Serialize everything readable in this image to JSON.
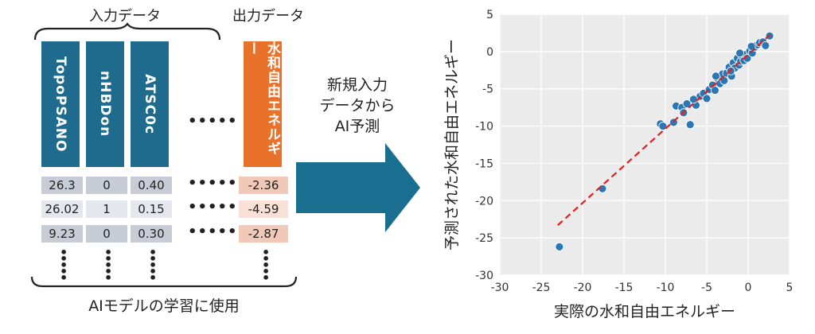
{
  "input_header": "入力データ",
  "output_header": "出力データ",
  "input_columns": [
    "TopoPSANO",
    "nHBDon",
    "ATSC0c"
  ],
  "output_column": "水和自由エネルギー",
  "ellipsis_h": "•••••",
  "rows": [
    {
      "cells": [
        "26.3",
        "0",
        "0.40"
      ],
      "out": "-2.36"
    },
    {
      "cells": [
        "26.02",
        "1",
        "0.15"
      ],
      "out": "-4.59"
    },
    {
      "cells": [
        "9.23",
        "0",
        "0.30"
      ],
      "out": "-2.87"
    }
  ],
  "bottom_label": "AIモデルの学習に使用",
  "arrow_text": [
    "新規入力",
    "データから",
    "AI予測"
  ],
  "colors": {
    "column_fill": "#1f6b8e",
    "output_fill": "#e8722a",
    "arrow": "#1a6e8f",
    "point": "#2b77b5",
    "fit_line": "#e02020",
    "plot_bg": "#ebebeb"
  },
  "chart_data": {
    "type": "scatter",
    "xlabel": "実際の水和自由エネルギー",
    "ylabel": "予測された水和自由エネルギー",
    "xlim": [
      -30,
      5
    ],
    "ylim": [
      -30,
      5
    ],
    "xticks": [
      -30,
      -25,
      -20,
      -15,
      -10,
      -5,
      0,
      5
    ],
    "yticks": [
      -30,
      -25,
      -20,
      -15,
      -10,
      -5,
      0,
      5
    ],
    "grid": true,
    "fit_line": {
      "x": [
        -23,
        3
      ],
      "y": [
        -23.3,
        2.6
      ]
    },
    "points": [
      [
        -22.8,
        -26.2
      ],
      [
        -17.6,
        -18.4
      ],
      [
        -10.6,
        -9.7
      ],
      [
        -10.3,
        -10.0
      ],
      [
        -9.0,
        -9.5
      ],
      [
        -8.7,
        -7.3
      ],
      [
        -8.0,
        -7.5
      ],
      [
        -7.8,
        -8.2
      ],
      [
        -7.4,
        -7.0
      ],
      [
        -7.0,
        -9.8
      ],
      [
        -6.3,
        -7.2
      ],
      [
        -5.8,
        -6.0
      ],
      [
        -5.4,
        -5.6
      ],
      [
        -5.0,
        -6.3
      ],
      [
        -4.7,
        -5.1
      ],
      [
        -4.3,
        -4.5
      ],
      [
        -4.0,
        -5.2
      ],
      [
        -3.7,
        -3.6
      ],
      [
        -3.4,
        -4.3
      ],
      [
        -3.1,
        -3.0
      ],
      [
        -2.9,
        -3.9
      ],
      [
        -2.6,
        -2.9
      ],
      [
        -2.3,
        -2.1
      ],
      [
        -2.0,
        -3.3
      ],
      [
        -1.8,
        -1.5
      ],
      [
        -1.6,
        -2.2
      ],
      [
        -1.3,
        -0.9
      ],
      [
        -1.1,
        -1.8
      ],
      [
        -0.9,
        -1.3
      ],
      [
        -0.7,
        -0.6
      ],
      [
        -0.5,
        -1.2
      ],
      [
        -0.3,
        -0.4
      ],
      [
        -0.1,
        -0.9
      ],
      [
        0.2,
        0.1
      ],
      [
        0.5,
        -0.2
      ],
      [
        0.8,
        0.6
      ],
      [
        1.1,
        0.9
      ],
      [
        1.4,
        1.2
      ],
      [
        1.8,
        1.3
      ],
      [
        2.1,
        0.8
      ],
      [
        2.6,
        2.1
      ],
      [
        -6.6,
        -6.4
      ],
      [
        -3.9,
        -3.3
      ],
      [
        -2.1,
        -2.6
      ],
      [
        -1.0,
        -0.2
      ],
      [
        0.4,
        0.7
      ]
    ]
  }
}
